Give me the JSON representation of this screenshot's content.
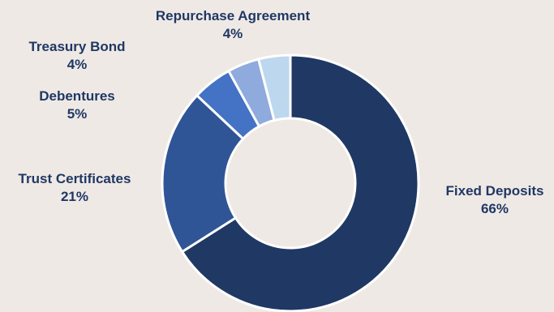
{
  "chart_data": {
    "type": "pie",
    "title": "",
    "slices": [
      {
        "label": "Fixed Deposits",
        "value": 66,
        "value_label": "66%",
        "color": "#1f3864"
      },
      {
        "label": "Trust Certificates",
        "value": 21,
        "value_label": "21%",
        "color": "#2f5597"
      },
      {
        "label": "Debentures",
        "value": 5,
        "value_label": "5%",
        "color": "#4472c4"
      },
      {
        "label": "Treasury Bond",
        "value": 4,
        "value_label": "4%",
        "color": "#8faadc"
      },
      {
        "label": "Repurchase Agreement",
        "value": 4,
        "value_label": "4%",
        "color": "#bdd7ee"
      }
    ],
    "hole": "donut",
    "legend": "none"
  },
  "colors": {
    "background": "#efe9e5",
    "label_text": "#1f3864",
    "slice_border": "#ffffff"
  }
}
